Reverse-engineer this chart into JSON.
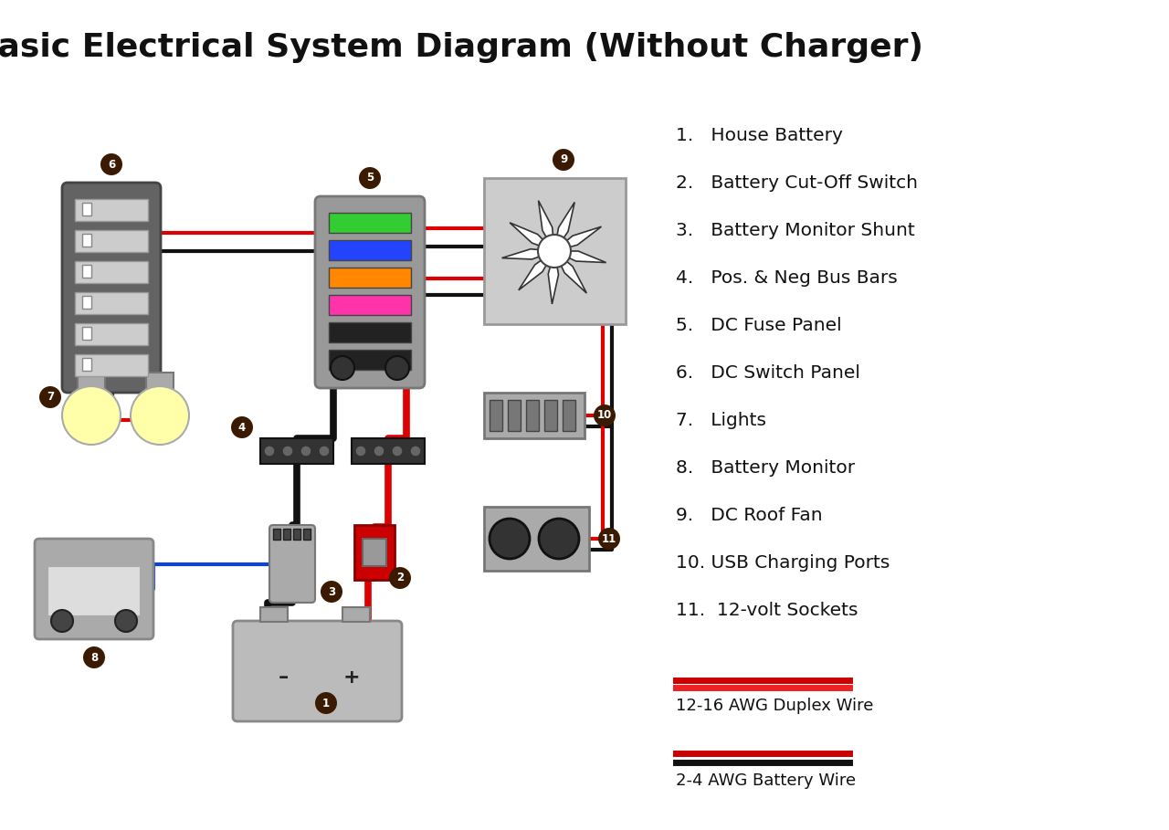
{
  "title": "Basic Electrical System Diagram (Without Charger)",
  "title_fontsize": 26,
  "bg_color": "#ffffff",
  "legend_items": [
    "1.   House Battery",
    "2.   Battery Cut-Off Switch",
    "3.   Battery Monitor Shunt",
    "4.   Pos. & Neg Bus Bars",
    "5.   DC Fuse Panel",
    "6.   DC Switch Panel",
    "7.   Lights",
    "8.   Battery Monitor",
    "9.   DC Roof Fan",
    "10. USB Charging Ports",
    "11.  12-volt Sockets"
  ],
  "wire_legend_1_label": "12-16 AWG Duplex Wire",
  "wire_legend_2_label": "2-4 AWG Battery Wire",
  "label_circle_color": "#3a1a00",
  "label_text_color": "#ffffff",
  "wire_red": "#dd0000",
  "wire_black": "#111111",
  "wire_blue": "#1144cc",
  "color_switch_panel": "#636363",
  "color_fuse_panel": "#999999",
  "color_battery": "#bbbbbb",
  "color_light_body": "#ffffaa",
  "color_light_base": "#aaaaaa",
  "color_monitor": "#aaaaaa",
  "color_fan": "#cccccc",
  "color_usb": "#aaaaaa",
  "color_socket": "#aaaaaa",
  "color_busbar": "#333333",
  "color_shunt": "#aaaaaa",
  "color_cutoff_red": "#cc0000",
  "color_cutoff_grey": "#999999",
  "fuse_colors": [
    "#33cc33",
    "#2244ff",
    "#ff8800",
    "#ff33aa",
    "#222222",
    "#222222"
  ]
}
